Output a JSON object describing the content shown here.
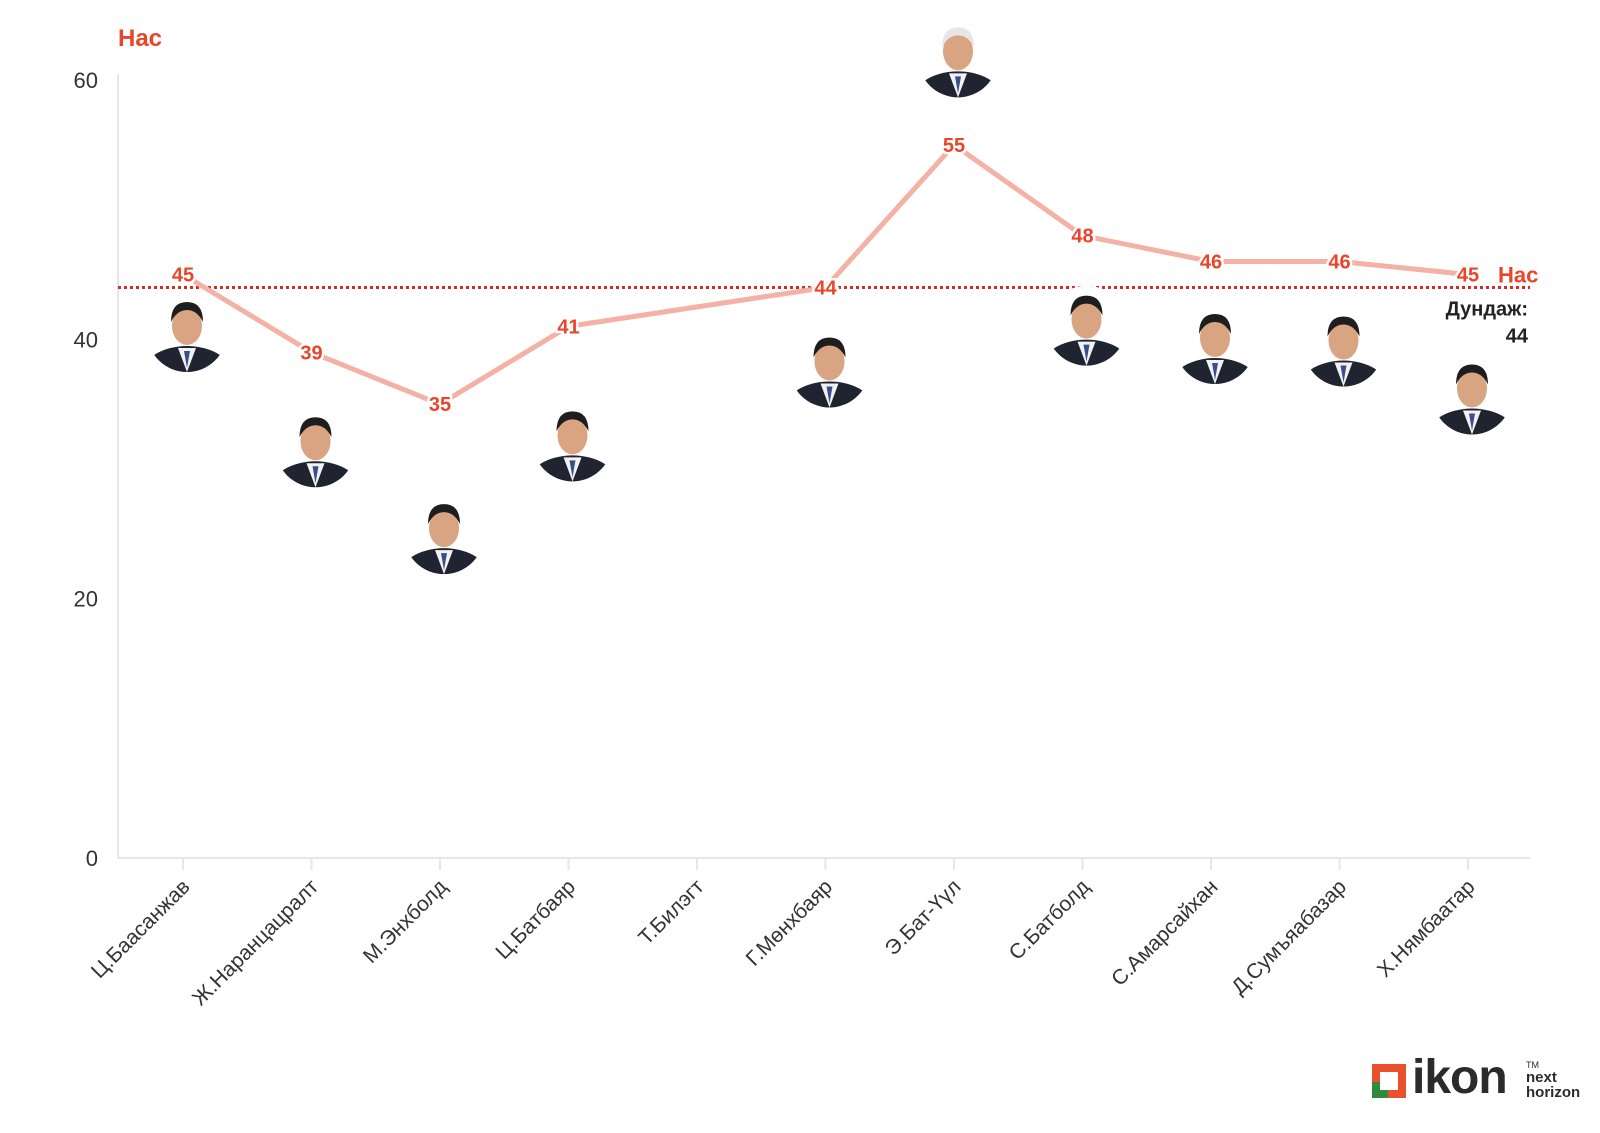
{
  "chart_data": {
    "type": "line",
    "ylabel": "Нас",
    "ylim": [
      0,
      60
    ],
    "y_ticks": [
      0,
      20,
      40,
      60
    ],
    "categories": [
      "Ц.Баасанжав",
      "Ж.Наранцацралт",
      "М.Энхболд",
      "Ц.Батбаяр",
      "Т.Билэгт",
      "Г.Мөнхбаяр",
      "Э.Бат-Үүл",
      "С.Батболд",
      "С.Амарсайхан",
      "Д.Сумъяабазар",
      "Х.Нямбаатар"
    ],
    "series": [
      {
        "name": "Нас",
        "values": [
          45,
          39,
          35,
          41,
          null,
          44,
          55,
          48,
          46,
          46,
          45
        ]
      }
    ],
    "data_labels": [
      "45",
      "39",
      "35",
      "41",
      "",
      "44",
      "55",
      "48",
      "46",
      "46",
      "45"
    ],
    "reference_line": {
      "value": 44,
      "label": "Дундаж:",
      "value_label": "44"
    },
    "grid": false,
    "colors": {
      "line": "#f3b2a5",
      "label": "#e8452a",
      "average": "#d62a22",
      "axis": "#e6e6e6"
    },
    "portraits": [
      "portrait",
      "portrait",
      "portrait",
      "portrait",
      "",
      "portrait",
      "portrait",
      "portrait",
      "portrait",
      "portrait",
      "portrait"
    ]
  },
  "logo": {
    "brand": "ikon",
    "tm": "TM",
    "tag_line1": "next",
    "tag_line2": "horizon"
  }
}
